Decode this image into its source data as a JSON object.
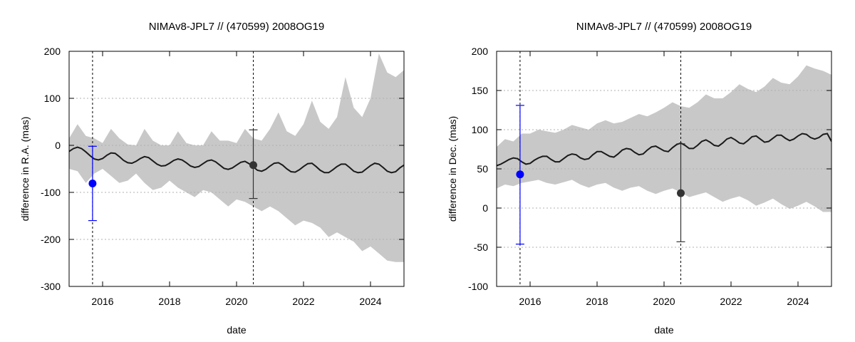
{
  "colors": {
    "band": "#c8c8c8",
    "model_line": "#1a1a1a",
    "obs_blue": "#0000ff",
    "obs_dark": "#333333",
    "grid": "#b0b0b0"
  },
  "chart_data": [
    {
      "type": "line",
      "title": "NIMAv8-JPL7 // (470599) 2008OG19",
      "xlabel": "date",
      "ylabel": "difference in R.A. (mas)",
      "xlim": [
        2015.0,
        2025.0
      ],
      "ylim": [
        -300,
        200
      ],
      "xticks": [
        2016,
        2018,
        2020,
        2022,
        2024
      ],
      "xtick_labels": [
        "2016",
        "2018",
        "2020",
        "2022",
        "2024"
      ],
      "yticks": [
        -300,
        -200,
        -100,
        0,
        100,
        200
      ],
      "ytick_labels": [
        "-300",
        "-200",
        "-100",
        "0",
        "100",
        "200"
      ],
      "grid": "horizontal dotted",
      "vertical_markers": [
        2015.7,
        2020.5
      ],
      "series": [
        {
          "kind": "band",
          "x": [
            2015.0,
            2015.25,
            2015.5,
            2015.75,
            2016.0,
            2016.25,
            2016.5,
            2016.75,
            2017.0,
            2017.25,
            2017.5,
            2017.75,
            2018.0,
            2018.25,
            2018.5,
            2018.75,
            2019.0,
            2019.25,
            2019.5,
            2019.75,
            2020.0,
            2020.25,
            2020.5,
            2020.75,
            2021.0,
            2021.25,
            2021.5,
            2021.75,
            2022.0,
            2022.25,
            2022.5,
            2022.75,
            2023.0,
            2023.25,
            2023.5,
            2023.75,
            2024.0,
            2024.25,
            2024.5,
            2024.75,
            2025.0
          ],
          "upper": [
            15,
            45,
            20,
            15,
            5,
            35,
            15,
            2,
            0,
            35,
            10,
            0,
            0,
            30,
            5,
            0,
            0,
            30,
            10,
            10,
            5,
            35,
            15,
            10,
            35,
            70,
            30,
            20,
            45,
            95,
            50,
            35,
            60,
            145,
            80,
            60,
            100,
            195,
            155,
            145,
            160
          ],
          "lower": [
            -50,
            -55,
            -80,
            -60,
            -50,
            -65,
            -80,
            -75,
            -60,
            -80,
            -95,
            -90,
            -75,
            -90,
            -100,
            -110,
            -95,
            -100,
            -115,
            -130,
            -115,
            -120,
            -130,
            -140,
            -130,
            -140,
            -155,
            -170,
            -160,
            -165,
            -175,
            -195,
            -185,
            -195,
            -205,
            -225,
            -215,
            -230,
            -245,
            -248,
            -248
          ]
        },
        {
          "kind": "line",
          "name": "",
          "x": [
            2015.0,
            2015.125,
            2015.25,
            2015.375,
            2015.5,
            2015.625,
            2015.75,
            2015.875,
            2016.0,
            2016.125,
            2016.25,
            2016.375,
            2016.5,
            2016.625,
            2016.75,
            2016.875,
            2017.0,
            2017.125,
            2017.25,
            2017.375,
            2017.5,
            2017.625,
            2017.75,
            2017.875,
            2018.0,
            2018.125,
            2018.25,
            2018.375,
            2018.5,
            2018.625,
            2018.75,
            2018.875,
            2019.0,
            2019.125,
            2019.25,
            2019.375,
            2019.5,
            2019.625,
            2019.75,
            2019.875,
            2020.0,
            2020.125,
            2020.25,
            2020.375,
            2020.5,
            2020.625,
            2020.75,
            2020.875,
            2021.0,
            2021.125,
            2021.25,
            2021.375,
            2021.5,
            2021.625,
            2021.75,
            2021.875,
            2022.0,
            2022.125,
            2022.25,
            2022.375,
            2022.5,
            2022.625,
            2022.75,
            2022.875,
            2023.0,
            2023.125,
            2023.25,
            2023.375,
            2023.5,
            2023.625,
            2023.75,
            2023.875,
            2024.0,
            2024.125,
            2024.25,
            2024.375,
            2024.5,
            2024.625,
            2024.75,
            2024.875,
            2025.0
          ],
          "y": [
            -13,
            -7,
            -4,
            -7,
            -14,
            -22,
            -29,
            -31,
            -28,
            -21,
            -16,
            -17,
            -24,
            -32,
            -37,
            -38,
            -34,
            -28,
            -24,
            -26,
            -33,
            -40,
            -44,
            -43,
            -38,
            -32,
            -29,
            -31,
            -37,
            -44,
            -47,
            -45,
            -39,
            -33,
            -31,
            -35,
            -42,
            -49,
            -51,
            -48,
            -42,
            -36,
            -34,
            -39,
            -46,
            -53,
            -55,
            -51,
            -44,
            -38,
            -37,
            -42,
            -50,
            -56,
            -57,
            -52,
            -45,
            -39,
            -38,
            -45,
            -53,
            -58,
            -58,
            -52,
            -45,
            -40,
            -40,
            -47,
            -55,
            -58,
            -57,
            -50,
            -43,
            -38,
            -40,
            -47,
            -55,
            -58,
            -56,
            -48,
            -42
          ]
        },
        {
          "kind": "points",
          "name": "",
          "points": [
            {
              "x": 2015.7,
              "y": -81,
              "ylow": -160,
              "yhigh": -2,
              "color": "#0000ff"
            },
            {
              "x": 2020.5,
              "y": -42,
              "ylow": -113,
              "yhigh": 33,
              "color": "#333333"
            }
          ]
        }
      ]
    },
    {
      "type": "line",
      "title": "NIMAv8-JPL7 // (470599) 2008OG19",
      "xlabel": "date",
      "ylabel": "difference in Dec. (mas)",
      "xlim": [
        2015.0,
        2025.0
      ],
      "ylim": [
        -100,
        200
      ],
      "xticks": [
        2016,
        2018,
        2020,
        2022,
        2024
      ],
      "xtick_labels": [
        "2016",
        "2018",
        "2020",
        "2022",
        "2024"
      ],
      "yticks": [
        -100,
        -50,
        0,
        50,
        100,
        150,
        200
      ],
      "ytick_labels": [
        "-100",
        "-50",
        "0",
        "50",
        "100",
        "150",
        "200"
      ],
      "grid": "horizontal dotted",
      "vertical_markers": [
        2015.7,
        2020.5
      ],
      "series": [
        {
          "kind": "band",
          "x": [
            2015.0,
            2015.25,
            2015.5,
            2015.75,
            2016.0,
            2016.25,
            2016.5,
            2016.75,
            2017.0,
            2017.25,
            2017.5,
            2017.75,
            2018.0,
            2018.25,
            2018.5,
            2018.75,
            2019.0,
            2019.25,
            2019.5,
            2019.75,
            2020.0,
            2020.25,
            2020.5,
            2020.75,
            2021.0,
            2021.25,
            2021.5,
            2021.75,
            2022.0,
            2022.25,
            2022.5,
            2022.75,
            2023.0,
            2023.25,
            2023.5,
            2023.75,
            2024.0,
            2024.25,
            2024.5,
            2024.75,
            2025.0
          ],
          "upper": [
            78,
            88,
            85,
            95,
            95,
            100,
            98,
            96,
            100,
            106,
            103,
            100,
            108,
            112,
            108,
            110,
            115,
            120,
            117,
            122,
            128,
            135,
            130,
            128,
            135,
            145,
            140,
            140,
            148,
            158,
            152,
            148,
            155,
            166,
            160,
            158,
            168,
            182,
            178,
            175,
            170
          ],
          "lower": [
            25,
            30,
            28,
            32,
            34,
            36,
            32,
            30,
            33,
            36,
            30,
            26,
            30,
            32,
            26,
            22,
            26,
            28,
            22,
            18,
            22,
            25,
            20,
            14,
            17,
            20,
            14,
            8,
            12,
            15,
            10,
            3,
            7,
            12,
            5,
            -1,
            3,
            8,
            2,
            -5,
            -5
          ]
        },
        {
          "kind": "line",
          "name": "",
          "x": [
            2015.0,
            2015.125,
            2015.25,
            2015.375,
            2015.5,
            2015.625,
            2015.75,
            2015.875,
            2016.0,
            2016.125,
            2016.25,
            2016.375,
            2016.5,
            2016.625,
            2016.75,
            2016.875,
            2017.0,
            2017.125,
            2017.25,
            2017.375,
            2017.5,
            2017.625,
            2017.75,
            2017.875,
            2018.0,
            2018.125,
            2018.25,
            2018.375,
            2018.5,
            2018.625,
            2018.75,
            2018.875,
            2019.0,
            2019.125,
            2019.25,
            2019.375,
            2019.5,
            2019.625,
            2019.75,
            2019.875,
            2020.0,
            2020.125,
            2020.25,
            2020.375,
            2020.5,
            2020.625,
            2020.75,
            2020.875,
            2021.0,
            2021.125,
            2021.25,
            2021.375,
            2021.5,
            2021.625,
            2021.75,
            2021.875,
            2022.0,
            2022.125,
            2022.25,
            2022.375,
            2022.5,
            2022.625,
            2022.75,
            2022.875,
            2023.0,
            2023.125,
            2023.25,
            2023.375,
            2023.5,
            2023.625,
            2023.75,
            2023.875,
            2024.0,
            2024.125,
            2024.25,
            2024.375,
            2024.5,
            2024.625,
            2024.75,
            2024.875,
            2025.0
          ],
          "y": [
            54,
            56,
            59,
            62,
            64,
            63,
            59,
            56,
            57,
            61,
            64,
            66,
            66,
            62,
            59,
            59,
            63,
            67,
            69,
            68,
            64,
            62,
            63,
            68,
            72,
            72,
            69,
            66,
            65,
            69,
            74,
            76,
            75,
            71,
            68,
            69,
            74,
            78,
            79,
            76,
            73,
            72,
            77,
            81,
            83,
            80,
            76,
            76,
            80,
            85,
            87,
            84,
            80,
            79,
            83,
            88,
            90,
            87,
            83,
            82,
            86,
            91,
            92,
            88,
            84,
            85,
            89,
            93,
            93,
            89,
            86,
            88,
            92,
            95,
            94,
            90,
            88,
            90,
            94,
            95,
            85
          ]
        },
        {
          "kind": "points",
          "name": "",
          "points": [
            {
              "x": 2015.7,
              "y": 43,
              "ylow": -46,
              "yhigh": 131,
              "color": "#0000ff"
            },
            {
              "x": 2020.5,
              "y": 19,
              "ylow": -43,
              "yhigh": 82,
              "color": "#333333"
            }
          ]
        }
      ]
    }
  ]
}
